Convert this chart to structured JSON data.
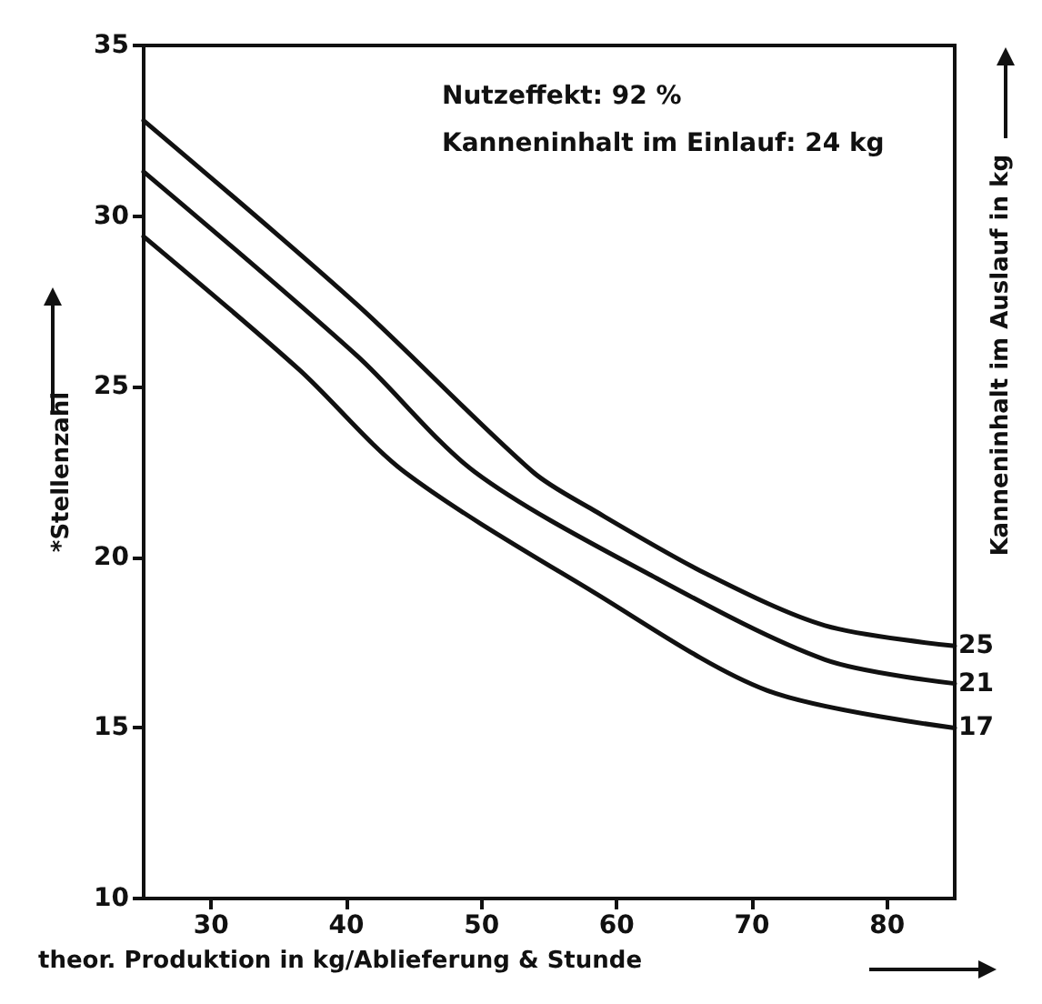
{
  "chart_data": {
    "type": "line",
    "xlabel": "theor. Produktion in kg/Ablieferung & Stunde",
    "ylabel": "*Stellenzahl",
    "y2label": "Kanneninhalt im Auslauf in kg",
    "annotations": [
      "Nutzeffekt: 92 %",
      "Kanneninhalt im Einlauf: 24 kg"
    ],
    "xlim": [
      25,
      85
    ],
    "xticks": [
      30,
      40,
      50,
      60,
      70,
      80
    ],
    "ylim": [
      10,
      35
    ],
    "yticks": [
      10,
      15,
      20,
      25,
      30,
      35
    ],
    "grid": false,
    "legend": false,
    "marker": "none",
    "line_style": "solid",
    "series": [
      {
        "name": "25",
        "color": "#111111",
        "x": [
          25,
          40.8,
          53.8,
          58.2,
          66.7,
          75.4,
          85
        ],
        "values": [
          32.8,
          27.4,
          22.5,
          21.4,
          19.5,
          18.0,
          17.4
        ]
      },
      {
        "name": "21",
        "color": "#111111",
        "x": [
          25,
          40.8,
          49.5,
          62.4,
          75.4,
          85
        ],
        "values": [
          31.3,
          25.9,
          22.5,
          19.5,
          17.0,
          16.3
        ]
      },
      {
        "name": "17",
        "color": "#111111",
        "x": [
          25,
          36.5,
          44.3,
          58.2,
          71.1,
          85
        ],
        "values": [
          29.4,
          25.5,
          22.5,
          19.0,
          16.1,
          15.0
        ]
      }
    ]
  }
}
